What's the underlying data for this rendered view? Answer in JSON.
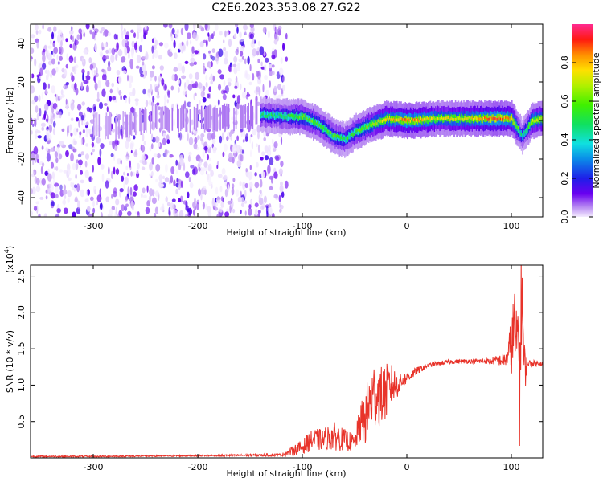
{
  "title": "C2E6.2023.353.08.27.G22",
  "chart_data": [
    {
      "type": "heatmap",
      "xlabel": "Height of straight line (km)",
      "ylabel": "Frequency (Hz)",
      "xlim": [
        -360,
        130
      ],
      "ylim": [
        -50,
        50
      ],
      "xticks": [
        -300,
        -200,
        -100,
        0,
        100
      ],
      "yticks": [
        -40,
        -20,
        0,
        20,
        40
      ],
      "colorbar": {
        "label": "Normalized spectral amplitude",
        "range": [
          0,
          1
        ],
        "ticks": [
          "0.0",
          "0.2",
          "0.4",
          "0.6",
          "0.8"
        ],
        "colormap": "gist_ncar-like"
      },
      "noise_region_x": [
        -360,
        -115
      ],
      "ridge": [
        {
          "x": -300,
          "y": -2,
          "a": 0.25
        },
        {
          "x": -280,
          "y": -3,
          "a": 0.3
        },
        {
          "x": -240,
          "y": 1,
          "a": 0.35
        },
        {
          "x": -220,
          "y": 1,
          "a": 0.4
        },
        {
          "x": -190,
          "y": 1,
          "a": 0.35
        },
        {
          "x": -140,
          "y": 3,
          "a": 0.45
        },
        {
          "x": -115,
          "y": 2,
          "a": 0.5
        },
        {
          "x": -100,
          "y": 2,
          "a": 0.6
        },
        {
          "x": -85,
          "y": -2,
          "a": 0.55
        },
        {
          "x": -70,
          "y": -8,
          "a": 0.55
        },
        {
          "x": -60,
          "y": -10,
          "a": 0.5
        },
        {
          "x": -50,
          "y": -6,
          "a": 0.55
        },
        {
          "x": -38,
          "y": -3,
          "a": 0.6
        },
        {
          "x": -20,
          "y": 1,
          "a": 0.75
        },
        {
          "x": 0,
          "y": 0,
          "a": 0.85
        },
        {
          "x": 30,
          "y": 1,
          "a": 0.7
        },
        {
          "x": 60,
          "y": 1,
          "a": 0.75
        },
        {
          "x": 85,
          "y": 1,
          "a": 0.9
        },
        {
          "x": 100,
          "y": 1,
          "a": 0.8
        },
        {
          "x": 110,
          "y": -8,
          "a": 0.4
        },
        {
          "x": 120,
          "y": 0,
          "a": 0.7
        },
        {
          "x": 130,
          "y": 1,
          "a": 0.7
        }
      ]
    },
    {
      "type": "line",
      "xlabel": "Height of straight line (km)",
      "ylabel": "SNR (10 * v/v)",
      "yscale_label": "(x10",
      "yscale_exp": "4",
      "yscale_close": ")",
      "xlim": [
        -360,
        130
      ],
      "ylim": [
        0,
        2.65
      ],
      "xticks": [
        -300,
        -200,
        -100,
        0,
        100
      ],
      "yticks": [
        0.5,
        1.0,
        1.5,
        2.0,
        2.5
      ],
      "ytick_labels": [
        "0.5",
        "1.0",
        "1.5",
        "2.0",
        "2.5"
      ],
      "series": [
        {
          "color": "#e8332a",
          "x": [
            -360,
            -300,
            -200,
            -120,
            -100,
            -90,
            -80,
            -70,
            -60,
            -50,
            -45,
            -40,
            -35,
            -30,
            -25,
            -20,
            -15,
            -10,
            -5,
            0,
            10,
            20,
            30,
            40,
            60,
            80,
            95,
            100,
            103,
            105,
            107,
            108,
            110,
            112,
            115,
            130
          ],
          "y": [
            0.02,
            0.02,
            0.03,
            0.04,
            0.15,
            0.25,
            0.25,
            0.3,
            0.25,
            0.2,
            0.45,
            0.55,
            0.75,
            0.9,
            0.85,
            0.9,
            1.0,
            1.0,
            1.05,
            1.1,
            1.2,
            1.27,
            1.3,
            1.32,
            1.33,
            1.33,
            1.35,
            1.55,
            1.8,
            1.4,
            2.0,
            0.8,
            2.6,
            1.2,
            1.3,
            1.3
          ],
          "noise": [
            0.01,
            0.01,
            0.01,
            0.02,
            0.1,
            0.15,
            0.15,
            0.2,
            0.15,
            0.12,
            0.25,
            0.4,
            0.45,
            0.5,
            0.4,
            0.4,
            0.3,
            0.2,
            0.1,
            0.08,
            0.05,
            0.03,
            0.03,
            0.03,
            0.03,
            0.04,
            0.1,
            0.4,
            0.6,
            0.6,
            0.8,
            0.7,
            0.9,
            0.5,
            0.05,
            0.03
          ]
        }
      ]
    }
  ]
}
